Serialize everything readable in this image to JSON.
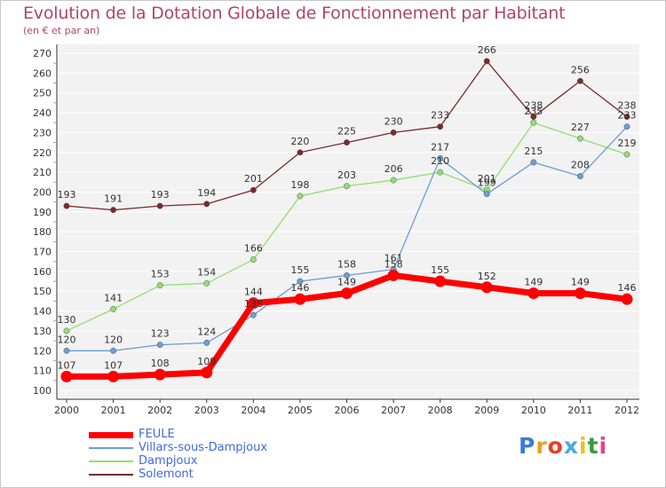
{
  "chart_data": {
    "type": "line",
    "title": "Evolution de la Dotation Globale de Fonctionnement par Habitant",
    "subtitle": "(en € et par an)",
    "xlabel": "",
    "ylabel": "",
    "x": [
      "2000",
      "2001",
      "2002",
      "2003",
      "2004",
      "2005",
      "2006",
      "2007",
      "2008",
      "2009",
      "2010",
      "2011",
      "2012"
    ],
    "ylim": [
      100,
      270
    ],
    "yticks": [
      100,
      110,
      120,
      130,
      140,
      150,
      160,
      170,
      180,
      190,
      200,
      210,
      220,
      230,
      240,
      250,
      260,
      270
    ],
    "grid": true,
    "legend": "bottom-left",
    "series": [
      {
        "name": "FEULE",
        "color": "#ff0000",
        "values": [
          107,
          107,
          108,
          109,
          144,
          146,
          149,
          158,
          155,
          152,
          149,
          149,
          146
        ]
      },
      {
        "name": "Villars-sous-Dampjoux",
        "color": "#6a9fd4",
        "values": [
          120,
          120,
          123,
          124,
          138,
          155,
          158,
          161,
          217,
          199,
          215,
          208,
          233
        ]
      },
      {
        "name": "Dampjoux",
        "color": "#90e070",
        "values": [
          130,
          141,
          153,
          154,
          166,
          198,
          203,
          206,
          210,
          201,
          235,
          227,
          219
        ]
      },
      {
        "name": "Solemont",
        "color": "#7a2a2a",
        "values": [
          193,
          191,
          193,
          194,
          201,
          220,
          225,
          230,
          233,
          266,
          238,
          256,
          238
        ]
      }
    ]
  },
  "labels": {
    "FEULE": [
      "107",
      "107",
      "108",
      "109",
      "144",
      "146",
      "149",
      "158",
      "155",
      "152",
      "149",
      "149",
      "146"
    ],
    "Villars-sous-Dampjoux": [
      "120",
      "120",
      "123",
      "124",
      "138",
      "155",
      "158",
      "161",
      "217",
      "199",
      "215",
      "208",
      "233"
    ],
    "Dampjoux": [
      "130",
      "141",
      "153",
      "154",
      "166",
      "198",
      "203",
      "206",
      "210",
      "201",
      "235",
      "227",
      "219"
    ],
    "Solemont": [
      "193",
      "191",
      "193",
      "194",
      "201",
      "220",
      "225",
      "230",
      "233",
      "266",
      "238",
      "256",
      "238"
    ]
  },
  "logo": {
    "text": "Proxiti",
    "colors": [
      "#3a7bd5",
      "#e8a020",
      "#e84020",
      "#4aa8e0",
      "#e8c020",
      "#3a9a40",
      "#e84080"
    ]
  }
}
